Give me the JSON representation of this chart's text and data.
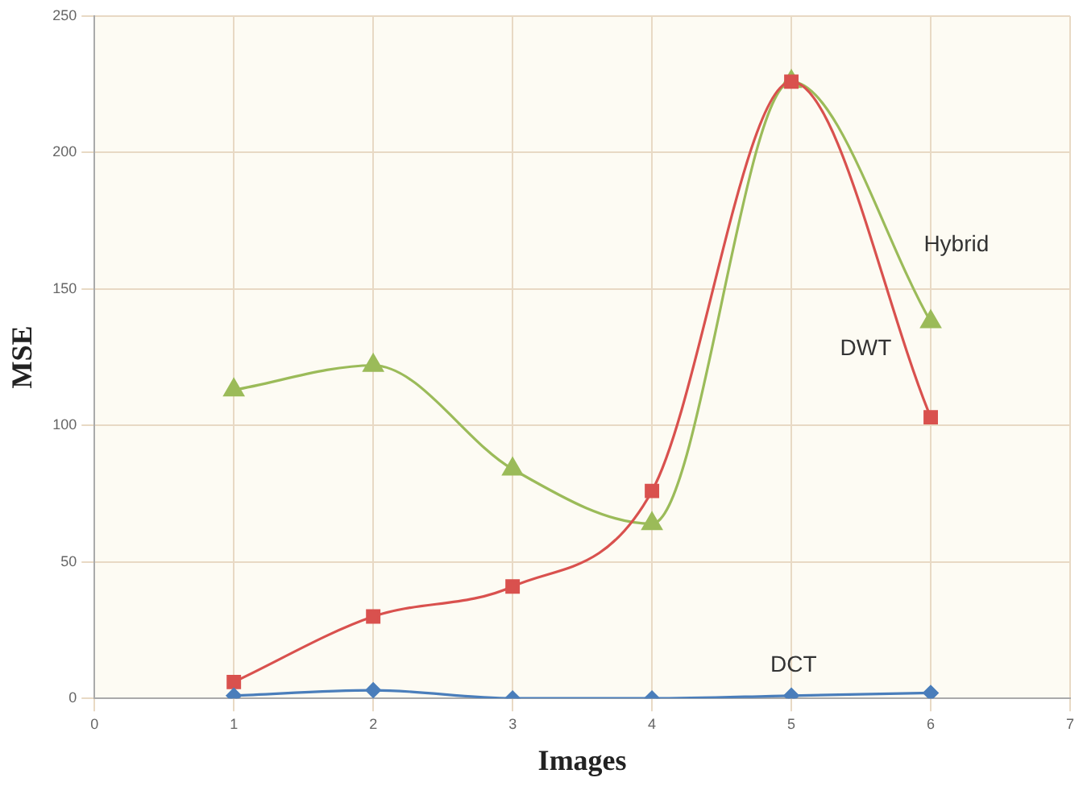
{
  "chart_data": {
    "type": "line",
    "xlabel": "Images",
    "ylabel": "MSE",
    "x": [
      1,
      2,
      3,
      4,
      5,
      6
    ],
    "series": [
      {
        "name": "DCT",
        "color": "#4a7ebb",
        "marker": "diamond",
        "values": [
          1,
          3,
          0,
          0,
          1,
          2
        ]
      },
      {
        "name": "DWT",
        "color": "#d9514e",
        "marker": "square",
        "values": [
          6,
          30,
          41,
          76,
          226,
          103
        ]
      },
      {
        "name": "Hybrid",
        "color": "#9bbb59",
        "marker": "triangle",
        "values": [
          113,
          122,
          84,
          64,
          226,
          138
        ]
      }
    ],
    "xlim": [
      0,
      7
    ],
    "xticks": [
      0,
      1,
      2,
      3,
      4,
      5,
      6,
      7
    ],
    "ylim": [
      0,
      250
    ],
    "yticks": [
      0,
      50,
      100,
      150,
      200,
      250
    ],
    "grid": true,
    "legend": false
  }
}
